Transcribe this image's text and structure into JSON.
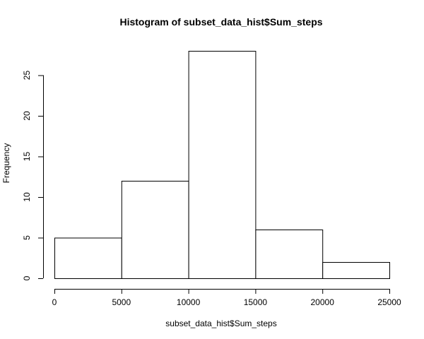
{
  "chart_data": {
    "type": "bar",
    "title": "Histogram of subset_data_hist$Sum_steps",
    "xlabel": "subset_data_hist$Sum_steps",
    "ylabel": "Frequency",
    "bins": [
      {
        "start": 0,
        "end": 5000,
        "count": 5
      },
      {
        "start": 5000,
        "end": 10000,
        "count": 12
      },
      {
        "start": 10000,
        "end": 15000,
        "count": 28
      },
      {
        "start": 15000,
        "end": 20000,
        "count": 6
      },
      {
        "start": 20000,
        "end": 25000,
        "count": 2
      }
    ],
    "xlim": [
      0,
      25000
    ],
    "ylim": [
      0,
      28
    ],
    "x_ticks": [
      0,
      5000,
      10000,
      15000,
      20000,
      25000
    ],
    "y_ticks": [
      0,
      5,
      10,
      15,
      20,
      25
    ],
    "grid": false,
    "colors": {
      "fill": "#ffffff",
      "stroke": "#000000"
    }
  }
}
